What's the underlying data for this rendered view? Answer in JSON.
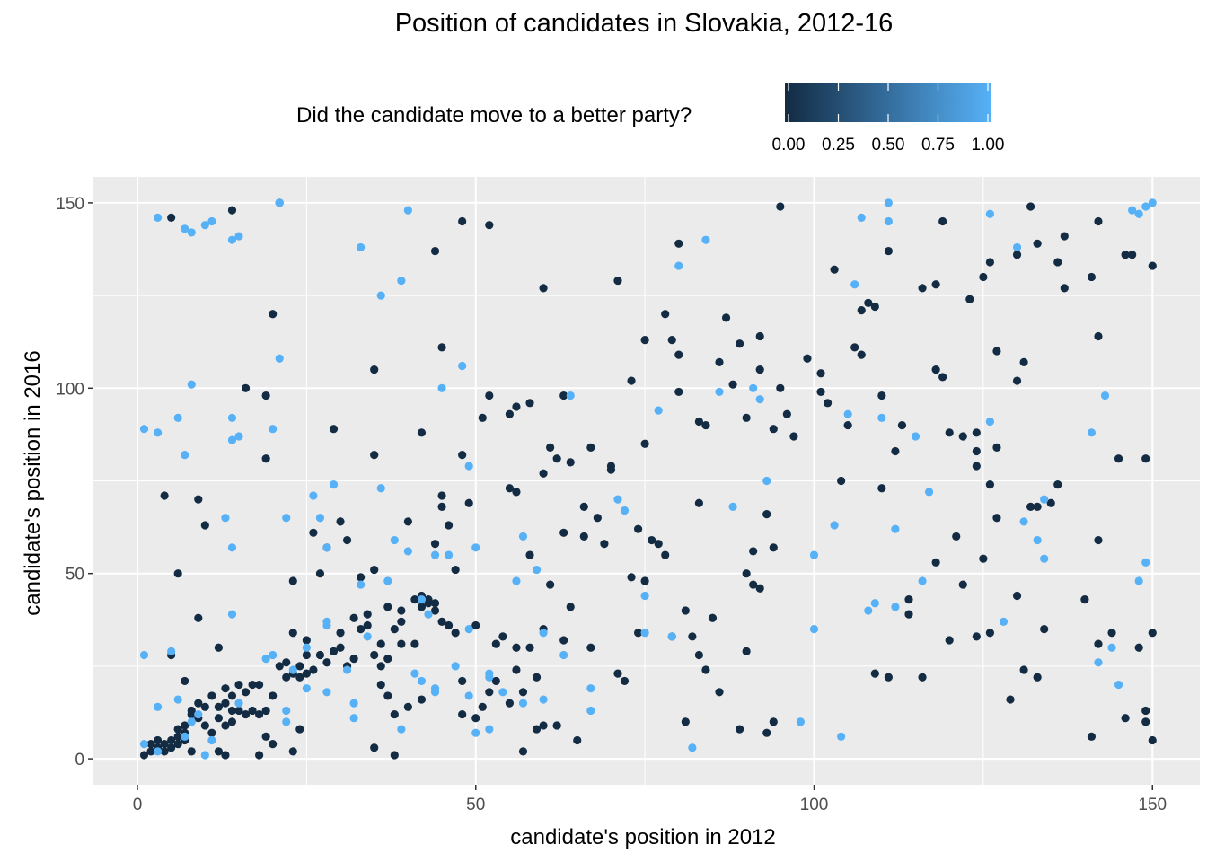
{
  "chart_data": {
    "type": "scatter",
    "title": "Position of candidates in Slovakia, 2012-16",
    "xlabel": "candidate's position in 2012",
    "ylabel": "candidate's position in 2016",
    "xlim": [
      -6.5,
      157
    ],
    "ylim": [
      -7,
      157
    ],
    "x_ticks": [
      0,
      50,
      100,
      150
    ],
    "y_ticks": [
      0,
      50,
      100,
      150
    ],
    "grid": true,
    "legend": {
      "title": "Did the candidate move to a better party?",
      "placement": "top",
      "ticks": [
        "0.00",
        "0.25",
        "0.50",
        "0.75",
        "1.00"
      ],
      "low_color": "#132B43",
      "high_color": "#56B1F7"
    },
    "colors": {
      "moved": "#56B1F7",
      "stayed": "#132B43",
      "panel": "#EBEBEB",
      "grid": "#FFFFFF"
    },
    "points_moved": [
      [
        3,
        146
      ],
      [
        7,
        143
      ],
      [
        8,
        142
      ],
      [
        10,
        144
      ],
      [
        11,
        145
      ],
      [
        14,
        140
      ],
      [
        15,
        141
      ],
      [
        21,
        150
      ],
      [
        33,
        138
      ],
      [
        36,
        125
      ],
      [
        39,
        129
      ],
      [
        40,
        148
      ],
      [
        80,
        133
      ],
      [
        84,
        140
      ],
      [
        107,
        146
      ],
      [
        111,
        150
      ],
      [
        111,
        145
      ],
      [
        126,
        147
      ],
      [
        130,
        138
      ],
      [
        147,
        148
      ],
      [
        148,
        147
      ],
      [
        149,
        149
      ],
      [
        150,
        150
      ],
      [
        1,
        89
      ],
      [
        3,
        88
      ],
      [
        6,
        92
      ],
      [
        7,
        82
      ],
      [
        8,
        101
      ],
      [
        14,
        92
      ],
      [
        14,
        86
      ],
      [
        15,
        87
      ],
      [
        20,
        89
      ],
      [
        21,
        108
      ],
      [
        45,
        100
      ],
      [
        48,
        106
      ],
      [
        49,
        79
      ],
      [
        64,
        98
      ],
      [
        71,
        70
      ],
      [
        72,
        67
      ],
      [
        77,
        94
      ],
      [
        86,
        99
      ],
      [
        88,
        68
      ],
      [
        91,
        100
      ],
      [
        92,
        97
      ],
      [
        93,
        75
      ],
      [
        100,
        55
      ],
      [
        100,
        35
      ],
      [
        103,
        63
      ],
      [
        104,
        6
      ],
      [
        105,
        93
      ],
      [
        106,
        128
      ],
      [
        108,
        40
      ],
      [
        109,
        42
      ],
      [
        110,
        92
      ],
      [
        112,
        62
      ],
      [
        112,
        41
      ],
      [
        115,
        87
      ],
      [
        116,
        48
      ],
      [
        117,
        72
      ],
      [
        126,
        91
      ],
      [
        128,
        37
      ],
      [
        131,
        64
      ],
      [
        133,
        59
      ],
      [
        134,
        70
      ],
      [
        134,
        54
      ],
      [
        141,
        88
      ],
      [
        142,
        26
      ],
      [
        143,
        98
      ],
      [
        144,
        30
      ],
      [
        145,
        20
      ],
      [
        148,
        48
      ],
      [
        149,
        53
      ],
      [
        1,
        28
      ],
      [
        1,
        4
      ],
      [
        3,
        14
      ],
      [
        3,
        2
      ],
      [
        5,
        29
      ],
      [
        6,
        16
      ],
      [
        7,
        6
      ],
      [
        8,
        10
      ],
      [
        9,
        12
      ],
      [
        10,
        1
      ],
      [
        11,
        5
      ],
      [
        13,
        65
      ],
      [
        14,
        39
      ],
      [
        14,
        57
      ],
      [
        15,
        15
      ],
      [
        19,
        27
      ],
      [
        20,
        28
      ],
      [
        22,
        65
      ],
      [
        22,
        13
      ],
      [
        22,
        10
      ],
      [
        23,
        24
      ],
      [
        25,
        30
      ],
      [
        25,
        19
      ],
      [
        26,
        71
      ],
      [
        27,
        65
      ],
      [
        28,
        57
      ],
      [
        28,
        37
      ],
      [
        28,
        36
      ],
      [
        28,
        18
      ],
      [
        29,
        74
      ],
      [
        31,
        24
      ],
      [
        32,
        15
      ],
      [
        32,
        11
      ],
      [
        33,
        47
      ],
      [
        34,
        33
      ],
      [
        36,
        73
      ],
      [
        37,
        48
      ],
      [
        38,
        59
      ],
      [
        39,
        8
      ],
      [
        40,
        56
      ],
      [
        41,
        23
      ],
      [
        42,
        43
      ],
      [
        42,
        21
      ],
      [
        43,
        39
      ],
      [
        44,
        55
      ],
      [
        44,
        19
      ],
      [
        44,
        18
      ],
      [
        46,
        55
      ],
      [
        47,
        25
      ],
      [
        49,
        35
      ],
      [
        49,
        17
      ],
      [
        50,
        57
      ],
      [
        50,
        7
      ],
      [
        52,
        23
      ],
      [
        52,
        22
      ],
      [
        52,
        8
      ],
      [
        54,
        18
      ],
      [
        56,
        48
      ],
      [
        57,
        60
      ],
      [
        57,
        15
      ],
      [
        59,
        51
      ],
      [
        60,
        16
      ],
      [
        60,
        34
      ],
      [
        63,
        28
      ],
      [
        67,
        19
      ],
      [
        67,
        13
      ],
      [
        75,
        44
      ],
      [
        75,
        34
      ],
      [
        79,
        33
      ],
      [
        82,
        3
      ],
      [
        98,
        10
      ]
    ],
    "points_stayed": [
      [
        5,
        146
      ],
      [
        14,
        148
      ],
      [
        21,
        150
      ],
      [
        44,
        137
      ],
      [
        48,
        145
      ],
      [
        52,
        144
      ],
      [
        60,
        127
      ],
      [
        71,
        129
      ],
      [
        80,
        139
      ],
      [
        95,
        149
      ],
      [
        103,
        132
      ],
      [
        111,
        137
      ],
      [
        119,
        145
      ],
      [
        126,
        134
      ],
      [
        130,
        136
      ],
      [
        132,
        149
      ],
      [
        133,
        139
      ],
      [
        136,
        134
      ],
      [
        137,
        141
      ],
      [
        141,
        130
      ],
      [
        142,
        145
      ],
      [
        146,
        136
      ],
      [
        147,
        136
      ],
      [
        150,
        133
      ],
      [
        16,
        100
      ],
      [
        19,
        98
      ],
      [
        19,
        81
      ],
      [
        20,
        120
      ],
      [
        35,
        105
      ],
      [
        35,
        82
      ],
      [
        42,
        88
      ],
      [
        45,
        111
      ],
      [
        48,
        82
      ],
      [
        51,
        92
      ],
      [
        52,
        98
      ],
      [
        55,
        93
      ],
      [
        56,
        95
      ],
      [
        58,
        96
      ],
      [
        60,
        77
      ],
      [
        61,
        84
      ],
      [
        62,
        81
      ],
      [
        63,
        98
      ],
      [
        64,
        80
      ],
      [
        66,
        68
      ],
      [
        67,
        84
      ],
      [
        70,
        79
      ],
      [
        70,
        78
      ],
      [
        73,
        102
      ],
      [
        75,
        113
      ],
      [
        75,
        85
      ],
      [
        78,
        120
      ],
      [
        79,
        113
      ],
      [
        80,
        109
      ],
      [
        80,
        99
      ],
      [
        83,
        91
      ],
      [
        84,
        90
      ],
      [
        86,
        107
      ],
      [
        87,
        119
      ],
      [
        88,
        101
      ],
      [
        89,
        112
      ],
      [
        90,
        92
      ],
      [
        92,
        114
      ],
      [
        92,
        105
      ],
      [
        94,
        89
      ],
      [
        95,
        100
      ],
      [
        96,
        93
      ],
      [
        97,
        87
      ],
      [
        99,
        108
      ],
      [
        101,
        104
      ],
      [
        101,
        99
      ],
      [
        102,
        96
      ],
      [
        104,
        75
      ],
      [
        105,
        90
      ],
      [
        106,
        111
      ],
      [
        107,
        121
      ],
      [
        107,
        109
      ],
      [
        108,
        123
      ],
      [
        109,
        122
      ],
      [
        110,
        98
      ],
      [
        110,
        73
      ],
      [
        112,
        83
      ],
      [
        113,
        90
      ],
      [
        116,
        127
      ],
      [
        118,
        128
      ],
      [
        118,
        105
      ],
      [
        119,
        103
      ],
      [
        120,
        88
      ],
      [
        122,
        87
      ],
      [
        123,
        124
      ],
      [
        124,
        88
      ],
      [
        124,
        83
      ],
      [
        124,
        79
      ],
      [
        125,
        130
      ],
      [
        126,
        74
      ],
      [
        127,
        110
      ],
      [
        127,
        84
      ],
      [
        130,
        102
      ],
      [
        131,
        107
      ],
      [
        133,
        68
      ],
      [
        135,
        69
      ],
      [
        136,
        74
      ],
      [
        137,
        127
      ],
      [
        140,
        43
      ],
      [
        142,
        114
      ],
      [
        142,
        59
      ],
      [
        145,
        81
      ],
      [
        149,
        81
      ],
      [
        4,
        71
      ],
      [
        5,
        28
      ],
      [
        6,
        50
      ],
      [
        7,
        21
      ],
      [
        9,
        70
      ],
      [
        9,
        38
      ],
      [
        10,
        63
      ],
      [
        12,
        30
      ],
      [
        17,
        20
      ],
      [
        18,
        1
      ],
      [
        19,
        6
      ],
      [
        23,
        48
      ],
      [
        23,
        34
      ],
      [
        24,
        8
      ],
      [
        25,
        28
      ],
      [
        26,
        61
      ],
      [
        27,
        50
      ],
      [
        28,
        57
      ],
      [
        29,
        89
      ],
      [
        30,
        64
      ],
      [
        30,
        34
      ],
      [
        31,
        59
      ],
      [
        32,
        38
      ],
      [
        33,
        49
      ],
      [
        34,
        39
      ],
      [
        35,
        51
      ],
      [
        35,
        3
      ],
      [
        36,
        25
      ],
      [
        37,
        41
      ],
      [
        38,
        1
      ],
      [
        39,
        31
      ],
      [
        40,
        64
      ],
      [
        41,
        31
      ],
      [
        42,
        44
      ],
      [
        43,
        42
      ],
      [
        44,
        58
      ],
      [
        44,
        40
      ],
      [
        45,
        71
      ],
      [
        45,
        68
      ],
      [
        46,
        63
      ],
      [
        47,
        51
      ],
      [
        48,
        12
      ],
      [
        49,
        69
      ],
      [
        50,
        11
      ],
      [
        52,
        18
      ],
      [
        53,
        31
      ],
      [
        55,
        73
      ],
      [
        55,
        15
      ],
      [
        56,
        72
      ],
      [
        56,
        30
      ],
      [
        57,
        2
      ],
      [
        58,
        55
      ],
      [
        59,
        8
      ],
      [
        60,
        35
      ],
      [
        61,
        47
      ],
      [
        62,
        9
      ],
      [
        63,
        61
      ],
      [
        64,
        41
      ],
      [
        65,
        5
      ],
      [
        66,
        60
      ],
      [
        68,
        65
      ],
      [
        69,
        58
      ],
      [
        71,
        23
      ],
      [
        72,
        21
      ],
      [
        73,
        49
      ],
      [
        74,
        62
      ],
      [
        74,
        34
      ],
      [
        75,
        48
      ],
      [
        76,
        59
      ],
      [
        77,
        58
      ],
      [
        78,
        55
      ],
      [
        79,
        33
      ],
      [
        81,
        40
      ],
      [
        81,
        10
      ],
      [
        82,
        33
      ],
      [
        83,
        69
      ],
      [
        83,
        28
      ],
      [
        84,
        24
      ],
      [
        85,
        38
      ],
      [
        86,
        18
      ],
      [
        89,
        8
      ],
      [
        90,
        29
      ],
      [
        90,
        50
      ],
      [
        91,
        56
      ],
      [
        91,
        47
      ],
      [
        92,
        46
      ],
      [
        93,
        7
      ],
      [
        93,
        66
      ],
      [
        94,
        57
      ],
      [
        94,
        10
      ],
      [
        120,
        32
      ],
      [
        121,
        60
      ],
      [
        122,
        47
      ],
      [
        124,
        33
      ],
      [
        125,
        54
      ],
      [
        126,
        34
      ],
      [
        127,
        65
      ],
      [
        129,
        16
      ],
      [
        130,
        44
      ],
      [
        131,
        24
      ],
      [
        132,
        68
      ],
      [
        133,
        22
      ],
      [
        134,
        35
      ],
      [
        141,
        6
      ],
      [
        142,
        31
      ],
      [
        144,
        34
      ],
      [
        146,
        11
      ],
      [
        148,
        30
      ],
      [
        149,
        13
      ],
      [
        149,
        10
      ],
      [
        150,
        5
      ],
      [
        150,
        34
      ],
      [
        109,
        23
      ],
      [
        111,
        22
      ],
      [
        114,
        43
      ],
      [
        114,
        39
      ],
      [
        116,
        22
      ],
      [
        118,
        53
      ],
      [
        1,
        1
      ],
      [
        2,
        4
      ],
      [
        2,
        2
      ],
      [
        3,
        5
      ],
      [
        3,
        3
      ],
      [
        4,
        2
      ],
      [
        4,
        4
      ],
      [
        5,
        5
      ],
      [
        5,
        3
      ],
      [
        6,
        6
      ],
      [
        6,
        8
      ],
      [
        6,
        4
      ],
      [
        7,
        7
      ],
      [
        7,
        9
      ],
      [
        7,
        5
      ],
      [
        8,
        12
      ],
      [
        8,
        13
      ],
      [
        8,
        2
      ],
      [
        9,
        15
      ],
      [
        9,
        11
      ],
      [
        10,
        14
      ],
      [
        10,
        9
      ],
      [
        11,
        17
      ],
      [
        11,
        7
      ],
      [
        12,
        14
      ],
      [
        12,
        11
      ],
      [
        12,
        2
      ],
      [
        13,
        19
      ],
      [
        13,
        15
      ],
      [
        13,
        9
      ],
      [
        13,
        1
      ],
      [
        14,
        17
      ],
      [
        14,
        13
      ],
      [
        14,
        10
      ],
      [
        15,
        20
      ],
      [
        15,
        13
      ],
      [
        16,
        18
      ],
      [
        16,
        12
      ],
      [
        17,
        13
      ],
      [
        18,
        20
      ],
      [
        18,
        12
      ],
      [
        19,
        13
      ],
      [
        20,
        17
      ],
      [
        20,
        4
      ],
      [
        21,
        25
      ],
      [
        22,
        26
      ],
      [
        22,
        22
      ],
      [
        23,
        23
      ],
      [
        23,
        2
      ],
      [
        24,
        25
      ],
      [
        24,
        22
      ],
      [
        25,
        32
      ],
      [
        25,
        23
      ],
      [
        26,
        24
      ],
      [
        27,
        28
      ],
      [
        28,
        26
      ],
      [
        29,
        29
      ],
      [
        30,
        30
      ],
      [
        31,
        25
      ],
      [
        32,
        27
      ],
      [
        33,
        35
      ],
      [
        34,
        36
      ],
      [
        35,
        28
      ],
      [
        36,
        31
      ],
      [
        36,
        20
      ],
      [
        37,
        17
      ],
      [
        37,
        27
      ],
      [
        38,
        35
      ],
      [
        38,
        12
      ],
      [
        39,
        40
      ],
      [
        39,
        37
      ],
      [
        40,
        14
      ],
      [
        41,
        43
      ],
      [
        42,
        41
      ],
      [
        42,
        16
      ],
      [
        43,
        43
      ],
      [
        44,
        42
      ],
      [
        45,
        37
      ],
      [
        46,
        36
      ],
      [
        47,
        34
      ],
      [
        48,
        21
      ],
      [
        50,
        36
      ],
      [
        51,
        14
      ],
      [
        53,
        21
      ],
      [
        54,
        33
      ],
      [
        56,
        24
      ],
      [
        57,
        18
      ],
      [
        58,
        30
      ],
      [
        59,
        22
      ],
      [
        60,
        9
      ],
      [
        62,
        9
      ],
      [
        63,
        32
      ],
      [
        67,
        30
      ]
    ]
  }
}
